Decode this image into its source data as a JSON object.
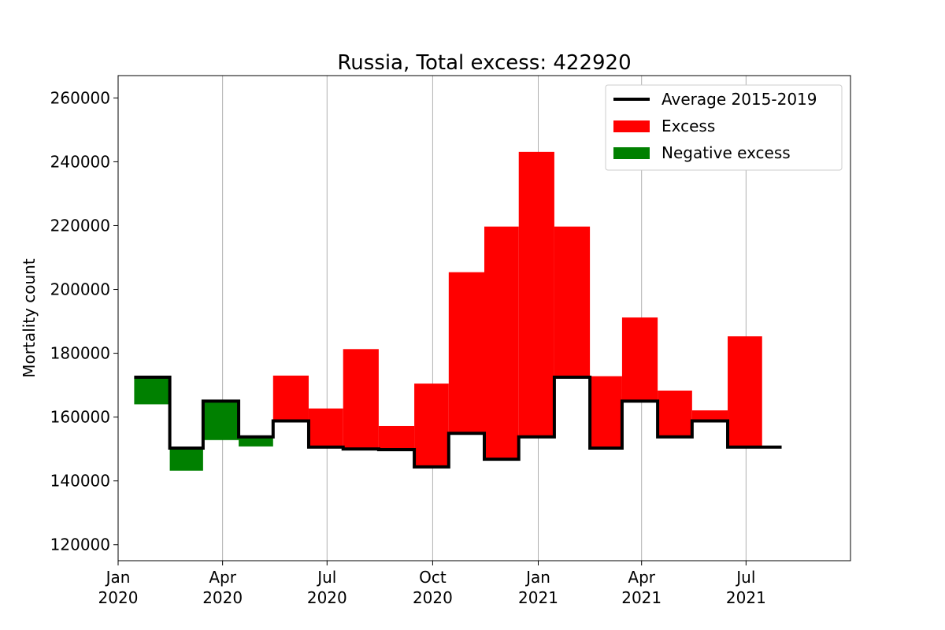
{
  "chart_data": {
    "type": "bar",
    "title": "Russia, Total excess: 422920",
    "ylabel": "Mortality count",
    "xlabel": "",
    "ylim": [
      115000,
      267000
    ],
    "xlim": [
      "2020-01-01",
      "2021-09-30"
    ],
    "yticks": [
      120000,
      140000,
      160000,
      180000,
      200000,
      220000,
      240000,
      260000
    ],
    "xticks": [
      {
        "date": "2020-01-01",
        "line1": "Jan",
        "line2": "2020"
      },
      {
        "date": "2020-04-01",
        "line1": "Apr",
        "line2": "2020"
      },
      {
        "date": "2020-07-01",
        "line1": "Jul",
        "line2": "2020"
      },
      {
        "date": "2020-10-01",
        "line1": "Oct",
        "line2": "2020"
      },
      {
        "date": "2021-01-01",
        "line1": "Jan",
        "line2": "2021"
      },
      {
        "date": "2021-04-01",
        "line1": "Apr",
        "line2": "2021"
      },
      {
        "date": "2021-07-01",
        "line1": "Jul",
        "line2": "2021"
      }
    ],
    "grid": "vertical",
    "legend_position": "top-right",
    "legend": [
      "Average 2015-2019",
      "Excess",
      "Negative excess"
    ],
    "colors": {
      "average": "#000000",
      "excess": "#ff0000",
      "negative": "#008000"
    },
    "months": [
      "2020-01",
      "2020-02",
      "2020-03",
      "2020-04",
      "2020-05",
      "2020-06",
      "2020-07",
      "2020-08",
      "2020-09",
      "2020-10",
      "2020-11",
      "2020-12",
      "2021-01",
      "2021-02",
      "2021-03",
      "2021-04",
      "2021-05",
      "2021-06",
      "2021-07"
    ],
    "series": [
      {
        "name": "Average 2015-2019",
        "values": [
          172500,
          150300,
          165000,
          153800,
          158800,
          150600,
          150000,
          149800,
          144400,
          154900,
          146800,
          153800,
          172500,
          150300,
          165000,
          153800,
          158800,
          150600,
          150600
        ]
      },
      {
        "name": "Mortality",
        "values": [
          164000,
          143200,
          152800,
          150800,
          173000,
          162700,
          181300,
          157200,
          170500,
          205400,
          219700,
          243100,
          219700,
          172800,
          191200,
          168300,
          162100,
          185300,
          null
        ]
      }
    ]
  }
}
